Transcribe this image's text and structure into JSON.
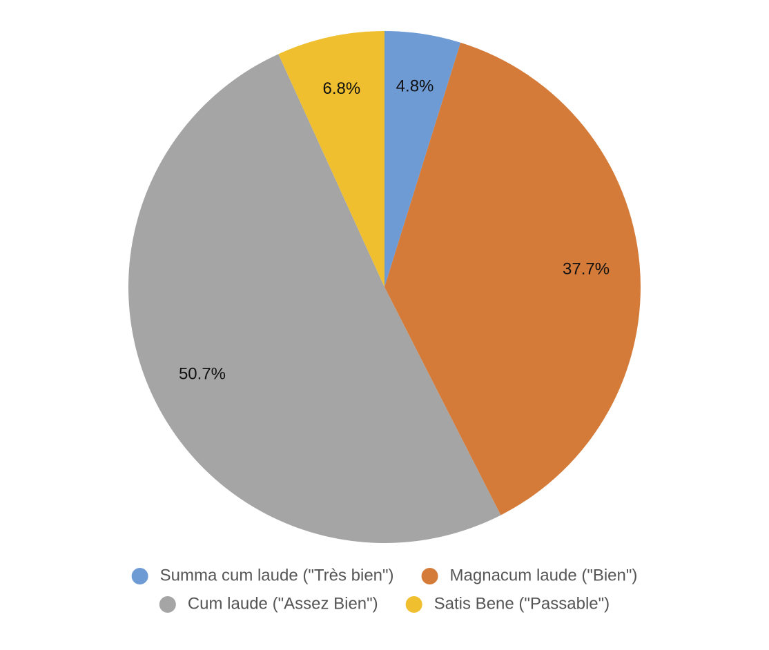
{
  "chart_data": {
    "type": "pie",
    "categories": [
      "Summa cum laude (\"Très bien\")",
      "Magnacum laude (\"Bien\")",
      "Cum laude (\"Assez Bien\")",
      "Satis Bene (\"Passable\")"
    ],
    "values": [
      4.8,
      37.7,
      50.7,
      6.8
    ],
    "value_labels": [
      "4.8%",
      "37.7%",
      "50.7%",
      "6.8%"
    ],
    "colors": [
      "#6f9bd5",
      "#d57b39",
      "#a5a5a5",
      "#f0bf30"
    ],
    "legend": "bottom"
  }
}
